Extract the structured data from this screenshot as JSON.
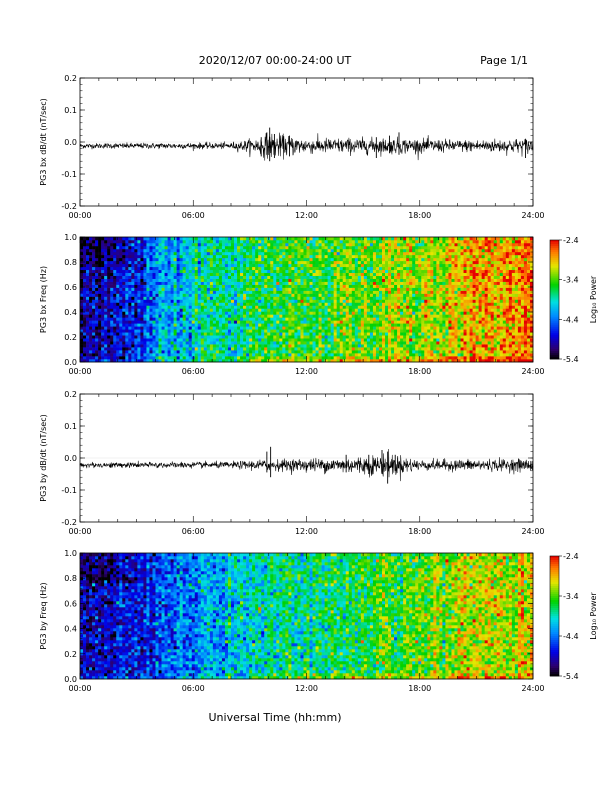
{
  "header": {
    "title": "2020/12/07  00:00-24:00 UT",
    "page": "Page 1/1"
  },
  "xaxis_title": "Universal Time (hh:mm)",
  "chart_data": [
    {
      "type": "line",
      "ylabel": "PG3 bx dB/dt (nT/sec)",
      "xlim": [
        0,
        24
      ],
      "ylim": [
        -0.2,
        0.2
      ],
      "x_tick_labels": [
        "00:00",
        "06:00",
        "12:00",
        "18:00",
        "24:00"
      ],
      "y_tick_labels": [
        "0.2",
        "0.1",
        "0.0",
        "-0.1",
        "-0.2"
      ],
      "baseline": -0.012,
      "activity": [
        {
          "x": 0,
          "amp": 0.004
        },
        {
          "x": 8,
          "amp": 0.005
        },
        {
          "x": 9.3,
          "amp": 0.012
        },
        {
          "x": 10,
          "amp": 0.02
        },
        {
          "x": 12,
          "amp": 0.012
        },
        {
          "x": 17,
          "amp": 0.012
        },
        {
          "x": 20,
          "amp": 0.009
        },
        {
          "x": 24,
          "amp": 0.012
        }
      ],
      "spikes": [
        {
          "x": 9.6,
          "min": -0.045,
          "max": 0.015
        },
        {
          "x": 9.9,
          "min": -0.04,
          "max": 0.03
        },
        {
          "x": 10.05,
          "min": -0.06,
          "max": 0.045
        },
        {
          "x": 10.3,
          "min": -0.05,
          "max": 0.025
        },
        {
          "x": 11.1,
          "min": -0.045,
          "max": 0.02
        },
        {
          "x": 15.7,
          "min": -0.05,
          "max": 0.015
        },
        {
          "x": 16.4,
          "min": -0.035,
          "max": 0.02
        },
        {
          "x": 16.9,
          "min": -0.04,
          "max": 0.03
        },
        {
          "x": 23.6,
          "min": -0.05,
          "max": 0.01
        }
      ]
    },
    {
      "type": "heatmap",
      "ylabel": "PG3 bx Freq (Hz)",
      "xlim": [
        0,
        24
      ],
      "ylim": [
        0,
        1
      ],
      "x_tick_labels": [
        "00:00",
        "06:00",
        "12:00",
        "18:00",
        "24:00"
      ],
      "y_tick_labels": [
        "1.0",
        "0.8",
        "0.6",
        "0.4",
        "0.2",
        "0.0"
      ],
      "colorbar": {
        "label": "Log₁₀ Power",
        "range": [
          -5.4,
          -2.4
        ],
        "tick_labels": [
          "-2.4",
          "-3.4",
          "-4.4",
          "-5.4"
        ]
      },
      "log_power_profile": [
        {
          "t": 0,
          "v": -5.1
        },
        {
          "t": 2,
          "v": -4.9
        },
        {
          "t": 4,
          "v": -4.4
        },
        {
          "t": 6,
          "v": -4.0
        },
        {
          "t": 9,
          "v": -3.7
        },
        {
          "t": 12,
          "v": -3.5
        },
        {
          "t": 15,
          "v": -3.4
        },
        {
          "t": 18,
          "v": -3.2
        },
        {
          "t": 21,
          "v": -2.9
        },
        {
          "t": 24,
          "v": -2.7
        }
      ]
    },
    {
      "type": "line",
      "ylabel": "PG3 by dB/dt (nT/sec)",
      "xlim": [
        0,
        24
      ],
      "ylim": [
        -0.2,
        0.2
      ],
      "x_tick_labels": [
        "00:00",
        "06:00",
        "12:00",
        "18:00",
        "24:00"
      ],
      "y_tick_labels": [
        "0.2",
        "0.1",
        "0.0",
        "-0.1",
        "-0.2"
      ],
      "baseline": -0.022,
      "activity": [
        {
          "x": 0,
          "amp": 0.004
        },
        {
          "x": 8,
          "amp": 0.005
        },
        {
          "x": 9.5,
          "amp": 0.008
        },
        {
          "x": 12,
          "amp": 0.01
        },
        {
          "x": 14,
          "amp": 0.012
        },
        {
          "x": 16.5,
          "amp": 0.018
        },
        {
          "x": 18,
          "amp": 0.008
        },
        {
          "x": 24,
          "amp": 0.01
        }
      ],
      "spikes": [
        {
          "x": 9.9,
          "min": -0.045,
          "max": 0.02
        },
        {
          "x": 10.1,
          "min": -0.06,
          "max": 0.035
        },
        {
          "x": 14.1,
          "min": -0.045,
          "max": 0.01
        },
        {
          "x": 15.3,
          "min": -0.05,
          "max": 0.01
        },
        {
          "x": 16.0,
          "min": -0.05,
          "max": 0.025
        },
        {
          "x": 16.3,
          "min": -0.08,
          "max": 0.02
        },
        {
          "x": 16.7,
          "min": -0.04,
          "max": 0.01
        }
      ]
    },
    {
      "type": "heatmap",
      "ylabel": "PG3 by Freq (Hz)",
      "xlim": [
        0,
        24
      ],
      "ylim": [
        0,
        1
      ],
      "x_tick_labels": [
        "00:00",
        "06:00",
        "12:00",
        "18:00",
        "24:00"
      ],
      "y_tick_labels": [
        "1.0",
        "0.8",
        "0.6",
        "0.4",
        "0.2",
        "0.0"
      ],
      "colorbar": {
        "label": "Log₁₀ Power",
        "range": [
          -5.4,
          -2.4
        ],
        "tick_labels": [
          "-2.4",
          "-3.4",
          "-4.4",
          "-5.4"
        ]
      },
      "log_power_profile": [
        {
          "t": 0,
          "v": -5.0
        },
        {
          "t": 3,
          "v": -4.8
        },
        {
          "t": 6,
          "v": -4.3
        },
        {
          "t": 9,
          "v": -4.0
        },
        {
          "t": 12,
          "v": -3.8
        },
        {
          "t": 15,
          "v": -3.6
        },
        {
          "t": 18,
          "v": -3.4
        },
        {
          "t": 21,
          "v": -3.2
        },
        {
          "t": 24,
          "v": -3.05
        }
      ]
    }
  ]
}
